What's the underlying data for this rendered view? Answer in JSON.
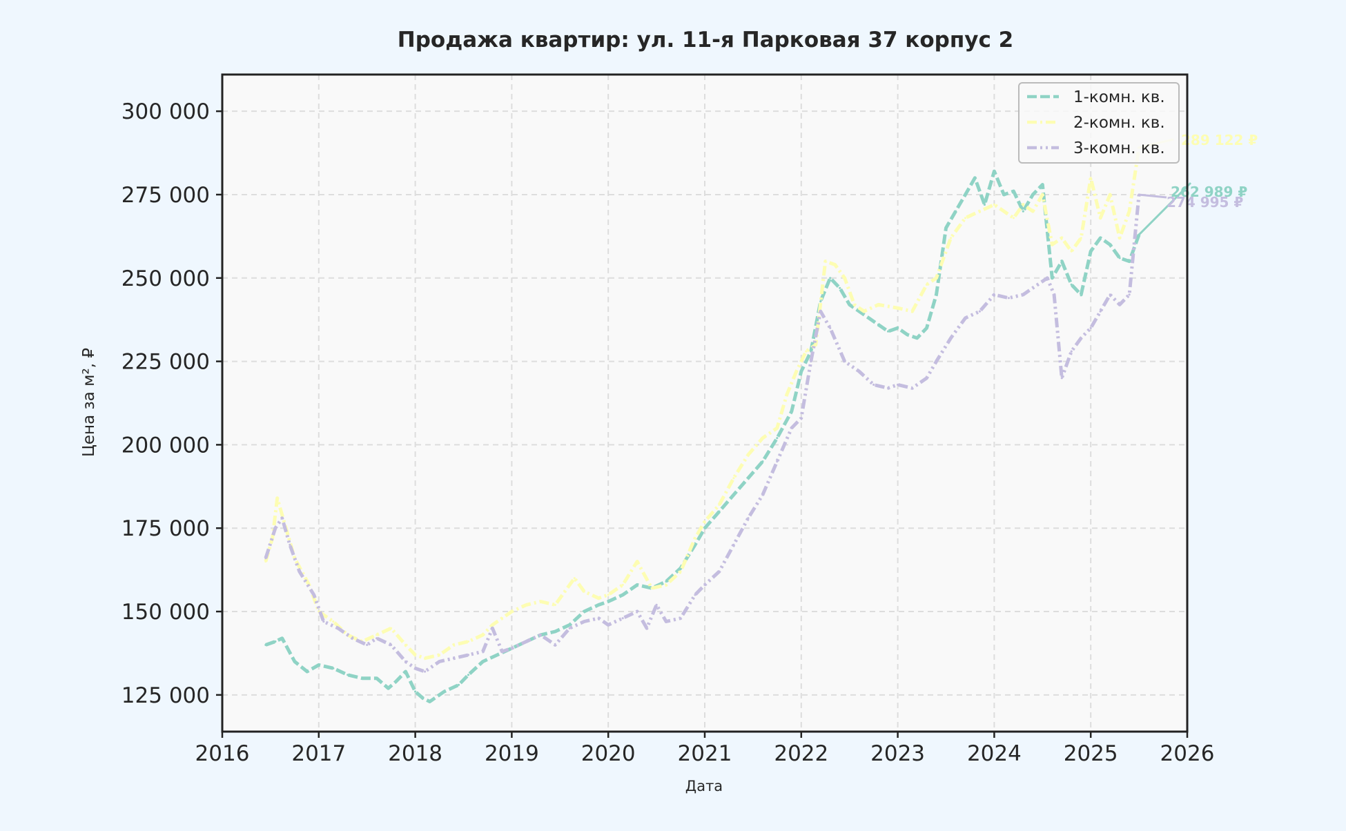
{
  "chart_data": {
    "type": "line",
    "title": "Продажа квартир: ул. 11-я Парковая 37 корпус 2",
    "xlabel": "Дата",
    "ylabel": "Цена за м², ₽",
    "xlim": [
      2016,
      2026
    ],
    "ylim": [
      114000,
      311000
    ],
    "x_ticks": [
      {
        "value": 2016,
        "label": "2016"
      },
      {
        "value": 2017,
        "label": "2017"
      },
      {
        "value": 2018,
        "label": "2018"
      },
      {
        "value": 2019,
        "label": "2019"
      },
      {
        "value": 2020,
        "label": "2020"
      },
      {
        "value": 2021,
        "label": "2021"
      },
      {
        "value": 2022,
        "label": "2022"
      },
      {
        "value": 2023,
        "label": "2023"
      },
      {
        "value": 2024,
        "label": "2024"
      },
      {
        "value": 2025,
        "label": "2025"
      },
      {
        "value": 2026,
        "label": "2026"
      }
    ],
    "y_ticks": [
      {
        "value": 125000,
        "label": "125 000"
      },
      {
        "value": 150000,
        "label": "150 000"
      },
      {
        "value": 175000,
        "label": "175 000"
      },
      {
        "value": 200000,
        "label": "200 000"
      },
      {
        "value": 225000,
        "label": "225 000"
      },
      {
        "value": 250000,
        "label": "250 000"
      },
      {
        "value": 275000,
        "label": "275 000"
      },
      {
        "value": 300000,
        "label": "300 000"
      }
    ],
    "grid": true,
    "legend_position": "top-right",
    "colors": {
      "background": "#eff7fe",
      "plot_area": "#f9f9f9",
      "axes": "#222222",
      "grid": "#dddddd",
      "text": "#262626"
    },
    "series": [
      {
        "name": "1-комн. кв.",
        "color": "#8fd3c5",
        "dash": "dashed",
        "x": [
          2016.45,
          2016.55,
          2016.62,
          2016.75,
          2016.88,
          2017.0,
          2017.15,
          2017.3,
          2017.45,
          2017.6,
          2017.72,
          2017.8,
          2017.9,
          2018.0,
          2018.08,
          2018.15,
          2018.3,
          2018.45,
          2018.55,
          2018.7,
          2018.85,
          2019.0,
          2019.15,
          2019.3,
          2019.45,
          2019.6,
          2019.75,
          2019.9,
          2020.0,
          2020.15,
          2020.3,
          2020.45,
          2020.6,
          2020.75,
          2020.9,
          2021.0,
          2021.15,
          2021.3,
          2021.45,
          2021.6,
          2021.75,
          2021.9,
          2022.0,
          2022.1,
          2022.2,
          2022.3,
          2022.4,
          2022.5,
          2022.6,
          2022.7,
          2022.8,
          2022.9,
          2023.0,
          2023.1,
          2023.2,
          2023.3,
          2023.4,
          2023.5,
          2023.6,
          2023.7,
          2023.8,
          2023.9,
          2024.0,
          2024.1,
          2024.2,
          2024.3,
          2024.4,
          2024.5,
          2024.6,
          2024.7,
          2024.8,
          2024.9,
          2025.0,
          2025.1,
          2025.2,
          2025.3,
          2025.4,
          2025.5
        ],
        "y": [
          140000,
          141000,
          142000,
          135000,
          132000,
          134000,
          133000,
          131000,
          130000,
          130000,
          127000,
          129000,
          132000,
          126000,
          124000,
          123000,
          126000,
          128000,
          131000,
          135000,
          137000,
          139000,
          141000,
          143000,
          144000,
          146000,
          150000,
          152000,
          153000,
          155000,
          158000,
          157000,
          159000,
          163000,
          170000,
          175000,
          180000,
          185000,
          190000,
          195000,
          202000,
          210000,
          222000,
          228000,
          243000,
          250000,
          247000,
          242000,
          240000,
          238000,
          236000,
          234000,
          235000,
          233000,
          232000,
          235000,
          245000,
          265000,
          270000,
          275000,
          280000,
          272000,
          282000,
          275000,
          276000,
          270000,
          275000,
          278000,
          250000,
          255000,
          248000,
          245000,
          258000,
          262000,
          260000,
          256000,
          255000,
          262989
        ],
        "last_label": "262 989 ₽"
      },
      {
        "name": "2-комн. кв.",
        "color": "#fdfdb3",
        "dash": "dashdot",
        "x": [
          2016.45,
          2016.52,
          2016.57,
          2016.65,
          2016.75,
          2016.9,
          2017.0,
          2017.15,
          2017.3,
          2017.45,
          2017.6,
          2017.75,
          2017.9,
          2018.0,
          2018.1,
          2018.25,
          2018.4,
          2018.55,
          2018.7,
          2018.8,
          2018.9,
          2019.0,
          2019.15,
          2019.3,
          2019.45,
          2019.55,
          2019.65,
          2019.75,
          2019.9,
          2020.0,
          2020.15,
          2020.3,
          2020.45,
          2020.6,
          2020.75,
          2020.9,
          2021.0,
          2021.15,
          2021.3,
          2021.45,
          2021.6,
          2021.75,
          2021.85,
          2021.95,
          2022.05,
          2022.15,
          2022.25,
          2022.35,
          2022.45,
          2022.55,
          2022.65,
          2022.8,
          2023.0,
          2023.15,
          2023.3,
          2023.4,
          2023.55,
          2023.7,
          2023.85,
          2024.0,
          2024.1,
          2024.2,
          2024.3,
          2024.4,
          2024.5,
          2024.6,
          2024.7,
          2024.8,
          2024.9,
          2025.0,
          2025.1,
          2025.2,
          2025.3,
          2025.4,
          2025.5
        ],
        "y": [
          165000,
          172000,
          184000,
          176000,
          166000,
          158000,
          150000,
          147000,
          143000,
          141000,
          143000,
          145000,
          140000,
          137000,
          136000,
          137000,
          140000,
          141000,
          143000,
          146000,
          148000,
          150000,
          152000,
          153000,
          152000,
          156000,
          160000,
          156000,
          154000,
          155000,
          158000,
          165000,
          157000,
          158000,
          162000,
          172000,
          177000,
          182000,
          190000,
          197000,
          202000,
          205000,
          215000,
          222000,
          228000,
          230000,
          255000,
          254000,
          250000,
          242000,
          240000,
          242000,
          241000,
          240000,
          248000,
          250000,
          262000,
          268000,
          270000,
          272000,
          270000,
          268000,
          272000,
          270000,
          275000,
          260000,
          262000,
          258000,
          262000,
          280000,
          268000,
          275000,
          262000,
          270000,
          289122
        ],
        "last_label": "289 122 ₽"
      },
      {
        "name": "3-комн. кв.",
        "color": "#c4bddf",
        "dash": "dashdotdot",
        "x": [
          2016.45,
          2016.55,
          2016.62,
          2016.7,
          2016.8,
          2016.95,
          2017.05,
          2017.2,
          2017.35,
          2017.5,
          2017.6,
          2017.75,
          2017.9,
          2018.0,
          2018.1,
          2018.25,
          2018.4,
          2018.55,
          2018.7,
          2018.8,
          2018.9,
          2019.0,
          2019.15,
          2019.3,
          2019.45,
          2019.6,
          2019.75,
          2019.9,
          2020.0,
          2020.15,
          2020.3,
          2020.4,
          2020.5,
          2020.6,
          2020.75,
          2020.9,
          2021.0,
          2021.15,
          2021.3,
          2021.45,
          2021.6,
          2021.75,
          2021.9,
          2022.0,
          2022.1,
          2022.2,
          2022.3,
          2022.45,
          2022.6,
          2022.75,
          2022.9,
          2023.0,
          2023.15,
          2023.3,
          2023.4,
          2023.55,
          2023.7,
          2023.85,
          2024.0,
          2024.15,
          2024.3,
          2024.45,
          2024.55,
          2024.62,
          2024.7,
          2024.8,
          2024.9,
          2025.0,
          2025.1,
          2025.2,
          2025.3,
          2025.4,
          2025.5
        ],
        "y": [
          166000,
          175000,
          178000,
          170000,
          162000,
          155000,
          147000,
          145000,
          142000,
          140000,
          142000,
          140000,
          135000,
          133000,
          132000,
          135000,
          136000,
          137000,
          138000,
          145000,
          138000,
          139000,
          141000,
          143000,
          140000,
          145000,
          147000,
          148000,
          146000,
          148000,
          150000,
          145000,
          152000,
          147000,
          148000,
          155000,
          158000,
          162000,
          170000,
          178000,
          185000,
          195000,
          205000,
          208000,
          225000,
          240000,
          235000,
          225000,
          222000,
          218000,
          217000,
          218000,
          217000,
          220000,
          225000,
          232000,
          238000,
          240000,
          245000,
          244000,
          245000,
          248000,
          250000,
          245000,
          220000,
          228000,
          232000,
          235000,
          240000,
          245000,
          242000,
          245000,
          274995
        ],
        "last_label": "274 995 ₽"
      }
    ]
  }
}
